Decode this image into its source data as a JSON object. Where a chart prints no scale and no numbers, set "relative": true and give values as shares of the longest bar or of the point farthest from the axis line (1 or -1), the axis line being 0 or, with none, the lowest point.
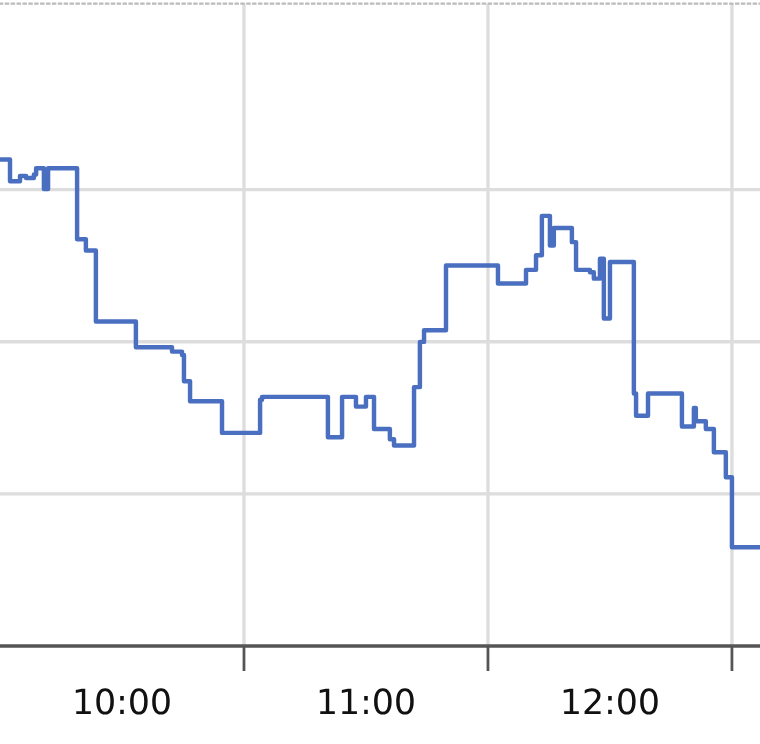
{
  "chart_data": {
    "type": "step",
    "relative": true,
    "grid": true,
    "tick_labels": "x",
    "xlim": [
      9.5,
      12.615
    ],
    "xticks": [
      {
        "value": 10,
        "label": "10:00"
      },
      {
        "value": 10.5,
        "label": null
      },
      {
        "value": 11,
        "label": "11:00"
      },
      {
        "value": 11.5,
        "label": null
      },
      {
        "value": 12,
        "label": "12:00"
      },
      {
        "value": 12.5,
        "label": null
      }
    ],
    "series": [
      {
        "color": "#4a6fc0",
        "x": [
          9.5,
          9.541,
          9.582,
          9.607,
          9.639,
          9.648,
          9.68,
          9.697,
          9.816,
          9.852,
          9.893,
          10.057,
          10.205,
          10.246,
          10.254,
          10.279,
          10.41,
          10.566,
          10.574,
          10.844,
          10.902,
          10.959,
          11.0,
          11.033,
          11.098,
          11.115,
          11.197,
          11.221,
          11.238,
          11.328,
          11.541,
          11.656,
          11.697,
          11.721,
          11.754,
          11.77,
          11.844,
          11.861,
          11.918,
          11.934,
          11.959,
          11.975,
          12.0,
          12.098,
          12.107,
          12.156,
          12.295,
          12.344,
          12.352,
          12.393,
          12.426,
          12.475,
          12.5,
          12.615
        ],
        "values": [
          1.0,
          0.955,
          0.966,
          0.962,
          0.969,
          0.982,
          0.939,
          0.982,
          0.836,
          0.813,
          0.667,
          0.614,
          0.605,
          0.598,
          0.544,
          0.503,
          0.438,
          0.506,
          0.512,
          0.429,
          0.512,
          0.492,
          0.512,
          0.446,
          0.425,
          0.412,
          0.532,
          0.625,
          0.649,
          0.782,
          0.745,
          0.773,
          0.803,
          0.884,
          0.823,
          0.859,
          0.83,
          0.773,
          0.768,
          0.755,
          0.796,
          0.673,
          0.789,
          0.519,
          0.473,
          0.519,
          0.451,
          0.489,
          0.462,
          0.446,
          0.398,
          0.347,
          0.203,
          0.203
        ]
      }
    ]
  }
}
